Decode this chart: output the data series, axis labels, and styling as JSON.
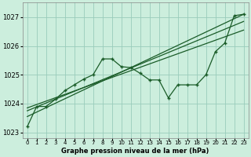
{
  "title": "Graphe pression niveau de la mer (hPa)",
  "background_color": "#cceedd",
  "grid_color": "#99ccbb",
  "line_color": "#1a5c28",
  "xlim": [
    -0.5,
    23.5
  ],
  "ylim": [
    1022.8,
    1027.5
  ],
  "yticks": [
    1023,
    1024,
    1025,
    1026,
    1027
  ],
  "xticks": [
    0,
    1,
    2,
    3,
    4,
    5,
    6,
    7,
    8,
    9,
    10,
    11,
    12,
    13,
    14,
    15,
    16,
    17,
    18,
    19,
    20,
    21,
    22,
    23
  ],
  "line1_x": [
    0,
    1,
    2,
    3,
    4,
    5,
    6,
    7,
    8,
    9,
    10,
    11,
    12,
    13,
    14,
    15,
    16,
    17,
    18,
    19,
    20,
    21,
    22,
    23
  ],
  "line1_y": [
    1023.2,
    1023.9,
    1023.9,
    1024.15,
    1024.45,
    1024.65,
    1024.85,
    1025.0,
    1025.55,
    1025.55,
    1025.28,
    1025.25,
    1025.05,
    1024.82,
    1024.82,
    1024.2,
    1024.65,
    1024.65,
    1024.65,
    1025.0,
    1025.8,
    1026.1,
    1027.05,
    1027.1
  ],
  "trend1_x0": 0,
  "trend1_y0": 1023.55,
  "trend1_x1": 23,
  "trend1_y1": 1027.1,
  "trend2_x0": 0,
  "trend2_y0": 1023.75,
  "trend2_x1": 23,
  "trend2_y1": 1026.85,
  "trend3_x0": 0,
  "trend3_y0": 1023.85,
  "trend3_x1": 23,
  "trend3_y1": 1026.55
}
